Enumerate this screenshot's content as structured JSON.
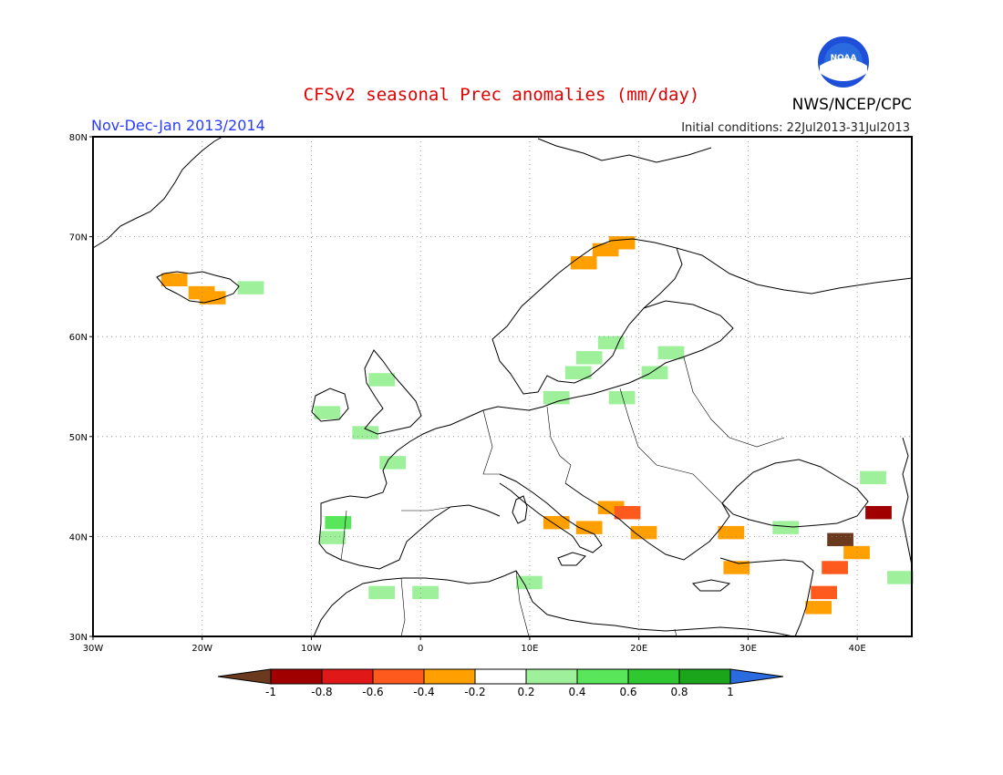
{
  "header": {
    "title": "CFSv2 seasonal Prec anomalies (mm/day)",
    "season": "Nov-Dec-Jan 2013/2014",
    "initial_conditions": "Initial conditions: 22Jul2013-31Jul2013",
    "agency": "NWS/NCEP/CPC",
    "logo_text": "NOAA"
  },
  "colors": {
    "title": "#e00000",
    "season": "#2a3cff",
    "neg_1": "#6b3a1e",
    "neg_08": "#a00000",
    "neg_06": "#e01818",
    "neg_04": "#ff5a1e",
    "neg_02": "#ffa000",
    "neutral": "#ffffff",
    "pos_02": "#9ef09a",
    "pos_04": "#5ae65a",
    "pos_06": "#30c830",
    "pos_08": "#1aa51a",
    "pos_1": "#2a6be0"
  },
  "map": {
    "lon_range": [
      -30,
      45
    ],
    "lat_range": [
      30,
      80
    ],
    "grid": true,
    "lon_ticks": [
      "30W",
      "20W",
      "10W",
      "0",
      "10E",
      "20E",
      "30E",
      "40E"
    ],
    "lat_ticks": [
      "30N",
      "40N",
      "50N",
      "60N",
      "70N",
      "80N"
    ],
    "lat_tick_values": [
      30,
      40,
      50,
      60,
      70,
      80
    ],
    "lon_tick_values": [
      -30,
      -20,
      -10,
      0,
      10,
      20,
      30,
      40
    ]
  },
  "legend": {
    "labels": [
      "-1",
      "-0.8",
      "-0.6",
      "-0.4",
      "-0.2",
      "0.2",
      "0.4",
      "0.6",
      "0.8",
      "1"
    ],
    "bins": [
      "neg_08",
      "neg_06",
      "neg_04",
      "neg_02",
      "neutral",
      "pos_02",
      "pos_04",
      "pos_06",
      "pos_08"
    ]
  },
  "anomaly_cells": [
    {
      "lon": -23,
      "lat": 65.8,
      "class": "neg_02"
    },
    {
      "lon": -20.5,
      "lat": 64.5,
      "class": "neg_02"
    },
    {
      "lon": -19.5,
      "lat": 64,
      "class": "neg_02"
    },
    {
      "lon": -16,
      "lat": 65,
      "class": "pos_02"
    },
    {
      "lon": 14.5,
      "lat": 67.5,
      "class": "neg_02"
    },
    {
      "lon": 16.5,
      "lat": 68.8,
      "class": "neg_02"
    },
    {
      "lon": 18,
      "lat": 69.5,
      "class": "neg_02"
    },
    {
      "lon": 17,
      "lat": 59.5,
      "class": "pos_02"
    },
    {
      "lon": 15,
      "lat": 58,
      "class": "pos_02"
    },
    {
      "lon": 14,
      "lat": 56.5,
      "class": "pos_02"
    },
    {
      "lon": 22.5,
      "lat": 58.5,
      "class": "pos_02"
    },
    {
      "lon": 21,
      "lat": 56.5,
      "class": "pos_02"
    },
    {
      "lon": 12,
      "lat": 54,
      "class": "pos_02"
    },
    {
      "lon": 18,
      "lat": 54,
      "class": "pos_02"
    },
    {
      "lon": -4,
      "lat": 55.8,
      "class": "pos_02"
    },
    {
      "lon": -9,
      "lat": 52.5,
      "class": "pos_02"
    },
    {
      "lon": -5.5,
      "lat": 50.5,
      "class": "pos_02"
    },
    {
      "lon": -3,
      "lat": 47.5,
      "class": "pos_02"
    },
    {
      "lon": -8,
      "lat": 41.5,
      "class": "pos_04"
    },
    {
      "lon": -8.5,
      "lat": 40,
      "class": "pos_02"
    },
    {
      "lon": -4,
      "lat": 34.5,
      "class": "pos_02"
    },
    {
      "lon": 0,
      "lat": 34.5,
      "class": "pos_02"
    },
    {
      "lon": 9.5,
      "lat": 35.5,
      "class": "pos_02"
    },
    {
      "lon": 17,
      "lat": 43,
      "class": "neg_02"
    },
    {
      "lon": 18.5,
      "lat": 42.5,
      "class": "neg_04"
    },
    {
      "lon": 15,
      "lat": 41,
      "class": "neg_02"
    },
    {
      "lon": 12,
      "lat": 41.5,
      "class": "neg_02"
    },
    {
      "lon": 20,
      "lat": 40.5,
      "class": "neg_02"
    },
    {
      "lon": 28,
      "lat": 40.5,
      "class": "neg_02"
    },
    {
      "lon": 28.5,
      "lat": 37,
      "class": "neg_02"
    },
    {
      "lon": 33,
      "lat": 41,
      "class": "pos_02"
    },
    {
      "lon": 41,
      "lat": 46,
      "class": "pos_02"
    },
    {
      "lon": 43.5,
      "lat": 36,
      "class": "pos_02"
    },
    {
      "lon": 38,
      "lat": 39.8,
      "class": "neg_1"
    },
    {
      "lon": 41.5,
      "lat": 42.5,
      "class": "neg_08"
    },
    {
      "lon": 39.5,
      "lat": 38.5,
      "class": "neg_02"
    },
    {
      "lon": 37.5,
      "lat": 37,
      "class": "neg_04"
    },
    {
      "lon": 36.5,
      "lat": 34.5,
      "class": "neg_04"
    },
    {
      "lon": 36,
      "lat": 33,
      "class": "neg_02"
    }
  ]
}
